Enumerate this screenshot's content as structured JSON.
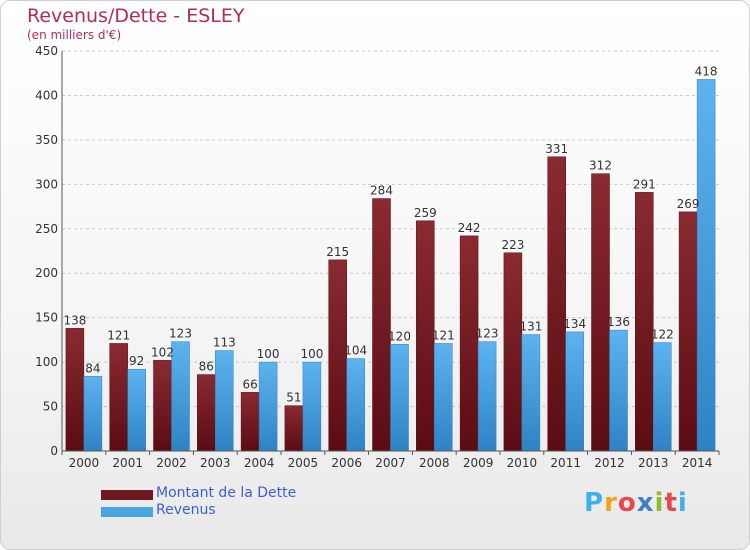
{
  "header": {
    "title": "Revenus/Dette - ESLEY",
    "subtitle": "(en milliers d'€)"
  },
  "logo": {
    "letters": [
      "P",
      "r",
      "o",
      "x",
      "i",
      "t",
      "i"
    ],
    "colors": [
      "#3ab4e6",
      "#f2a21e",
      "#e8474c",
      "#3e7fc4",
      "#8dbd2a",
      "#e8474c",
      "#3ab4e6"
    ]
  },
  "chart_data": {
    "type": "bar",
    "categories": [
      "2000",
      "2001",
      "2002",
      "2003",
      "2004",
      "2005",
      "2006",
      "2007",
      "2008",
      "2009",
      "2010",
      "2011",
      "2012",
      "2013",
      "2014"
    ],
    "series": [
      {
        "name": "Montant de la Dette",
        "color": "#7d1e26",
        "values": [
          138,
          121,
          102,
          86,
          66,
          51,
          215,
          284,
          259,
          242,
          223,
          331,
          312,
          291,
          269
        ]
      },
      {
        "name": "Revenus",
        "color": "#4aa6e2",
        "values": [
          84,
          92,
          123,
          113,
          100,
          100,
          104,
          120,
          121,
          123,
          131,
          134,
          136,
          122,
          418
        ]
      }
    ],
    "ylim": [
      0,
      450
    ],
    "yticks": [
      0,
      50,
      100,
      150,
      200,
      250,
      300,
      350,
      400,
      450
    ],
    "grid": true,
    "legend_position": "bottom-left"
  }
}
